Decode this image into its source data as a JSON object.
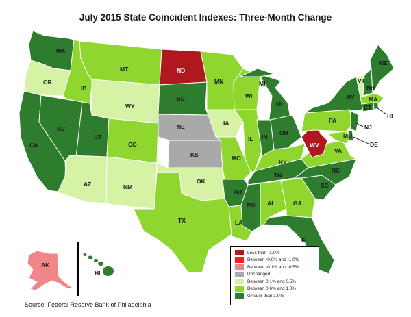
{
  "title": "July 2015 State Coincident Indexes: Three-Month Change",
  "source": "Source: Federal Reserve Bank of Philadelphia",
  "colors": {
    "lt_neg1": "#b0171f",
    "neg06_neg1": "#ff1a1a",
    "neg01_neg05": "#f0868a",
    "unchanged": "#a9a9a9",
    "pos01_05": "#d6f2a5",
    "pos06_10": "#8fd62e",
    "gt_1": "#2e7d2e"
  },
  "legend": [
    {
      "label": "Less than -1.0%",
      "color_key": "lt_neg1"
    },
    {
      "label": "Between -0.6% and -1.0%",
      "color_key": "neg06_neg1"
    },
    {
      "label": "Between -0.1% and -0.5%",
      "color_key": "neg01_neg05"
    },
    {
      "label": "Unchanged",
      "color_key": "unchanged"
    },
    {
      "label": "Between 0.1% and 0.5%",
      "color_key": "pos01_05"
    },
    {
      "label": "Between 0.6% and 1.0%",
      "color_key": "pos06_10"
    },
    {
      "label": "Greater than 1.0%",
      "color_key": "gt_1"
    }
  ],
  "states": {
    "WA": "gt_1",
    "OR": "pos01_05",
    "CA": "gt_1",
    "NV": "gt_1",
    "ID": "pos06_10",
    "MT": "pos06_10",
    "WY": "pos01_05",
    "UT": "gt_1",
    "AZ": "pos01_05",
    "CO": "pos06_10",
    "NM": "pos01_05",
    "ND": "lt_neg1",
    "SD": "gt_1",
    "NE": "unchanged",
    "KS": "unchanged",
    "OK": "pos01_05",
    "TX": "pos06_10",
    "MN": "pos06_10",
    "IA": "pos01_05",
    "MO": "pos06_10",
    "AR": "gt_1",
    "LA": "pos06_10",
    "WI": "pos06_10",
    "IL": "pos06_10",
    "MI": "gt_1",
    "IN": "gt_1",
    "OH": "gt_1",
    "KY": "pos06_10",
    "TN": "gt_1",
    "MS": "gt_1",
    "AL": "pos06_10",
    "GA": "pos06_10",
    "FL": "gt_1",
    "SC": "gt_1",
    "NC": "gt_1",
    "VA": "pos06_10",
    "WV": "lt_neg1",
    "PA": "pos06_10",
    "NY": "gt_1",
    "VT": "pos01_05",
    "NH": "gt_1",
    "ME": "gt_1",
    "MA": "pos06_10",
    "RI": "gt_1",
    "CT": "gt_1",
    "NJ": "gt_1",
    "DE": "gt_1",
    "MD": "pos06_10",
    "AK": "neg01_neg05",
    "HI": "gt_1"
  },
  "labels": {
    "WA": "WA",
    "OR": "OR",
    "CA": "CA",
    "NV": "NV",
    "ID": "ID",
    "MT": "MT",
    "WY": "WY",
    "UT": "UT",
    "AZ": "AZ",
    "CO": "CO",
    "NM": "NM",
    "ND": "ND",
    "SD": "SD",
    "NE": "NE",
    "KS": "KS",
    "OK": "OK",
    "TX": "TX",
    "MN": "MN",
    "IA": "IA",
    "MO": "MO",
    "AR": "AR",
    "LA": "LA",
    "WI": "WI",
    "IL": "IL",
    "MI": "MI",
    "IN": "IN",
    "OH": "OH",
    "KY": "KY",
    "TN": "TN",
    "MS": "MS",
    "AL": "AL",
    "GA": "GA",
    "FL": "FL",
    "SC": "SC",
    "NC": "NC",
    "VA": "VA",
    "WV": "WV",
    "PA": "PA",
    "NY": "NY",
    "VT": "VT",
    "NH": "NH",
    "ME": "ME",
    "MA": "MA",
    "RI": "RI",
    "CT": "CT",
    "NJ": "NJ",
    "DE": "DE",
    "MD": "MD",
    "AK": "AK",
    "HI": "HI"
  }
}
